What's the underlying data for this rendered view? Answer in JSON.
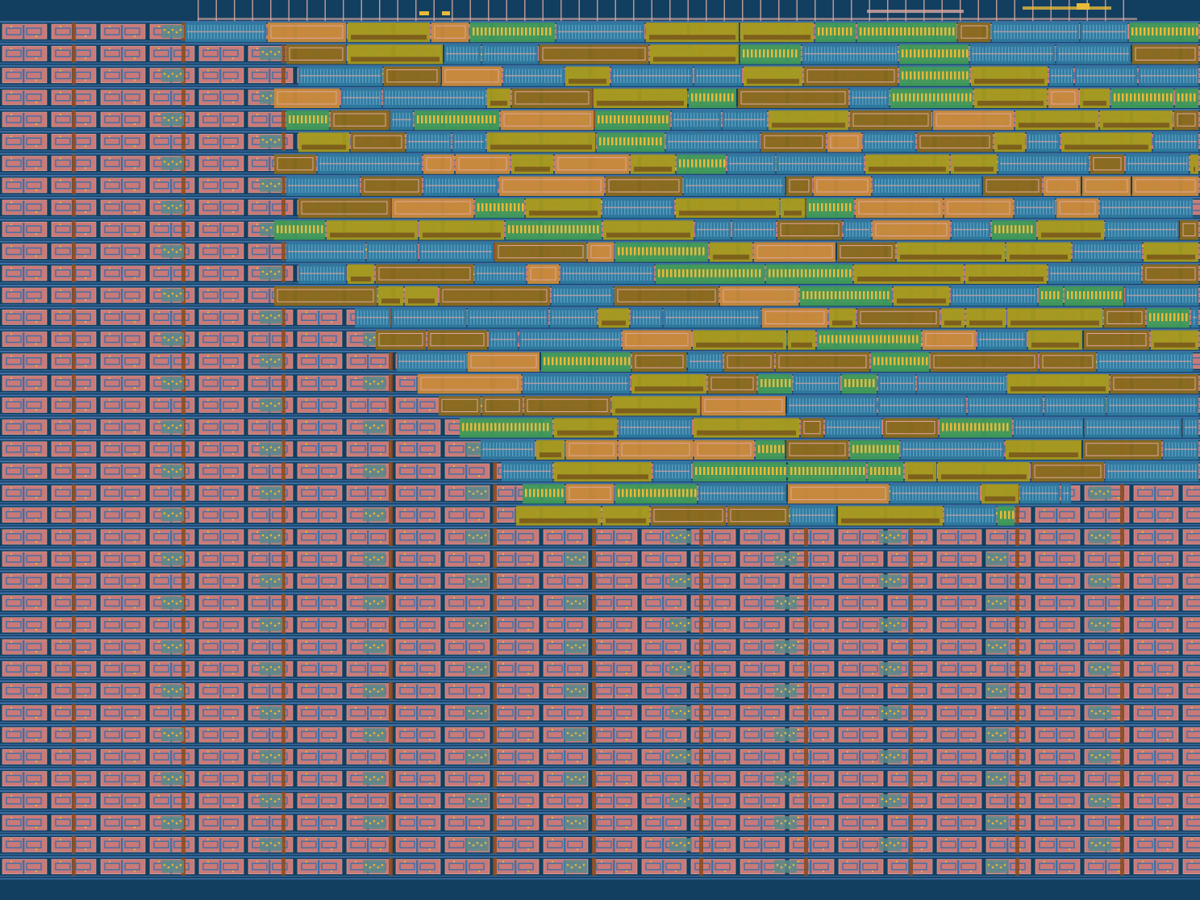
{
  "viewer": {
    "background_color": "#123f5f"
  },
  "layers": {
    "substrate": "#123f5f",
    "diffusion": "#c97a78",
    "poly": "#d9a6a0",
    "metal1": "#3f6fa6",
    "metal2": "#2a8aa8",
    "via": "#e8b93a",
    "nwell": "#a59a1d",
    "contact": "#8a4a1c",
    "active": "#3f9a5a",
    "implant": "#d98a3a",
    "routing": "#5aa3c9"
  },
  "regions": {
    "sram_array": {
      "fill_color": "#c97a78",
      "stroke_color": "#3f6fa6"
    },
    "logic_block": {
      "fill_color": "#2e7aa0",
      "accent_color": "#a59a1d"
    }
  }
}
